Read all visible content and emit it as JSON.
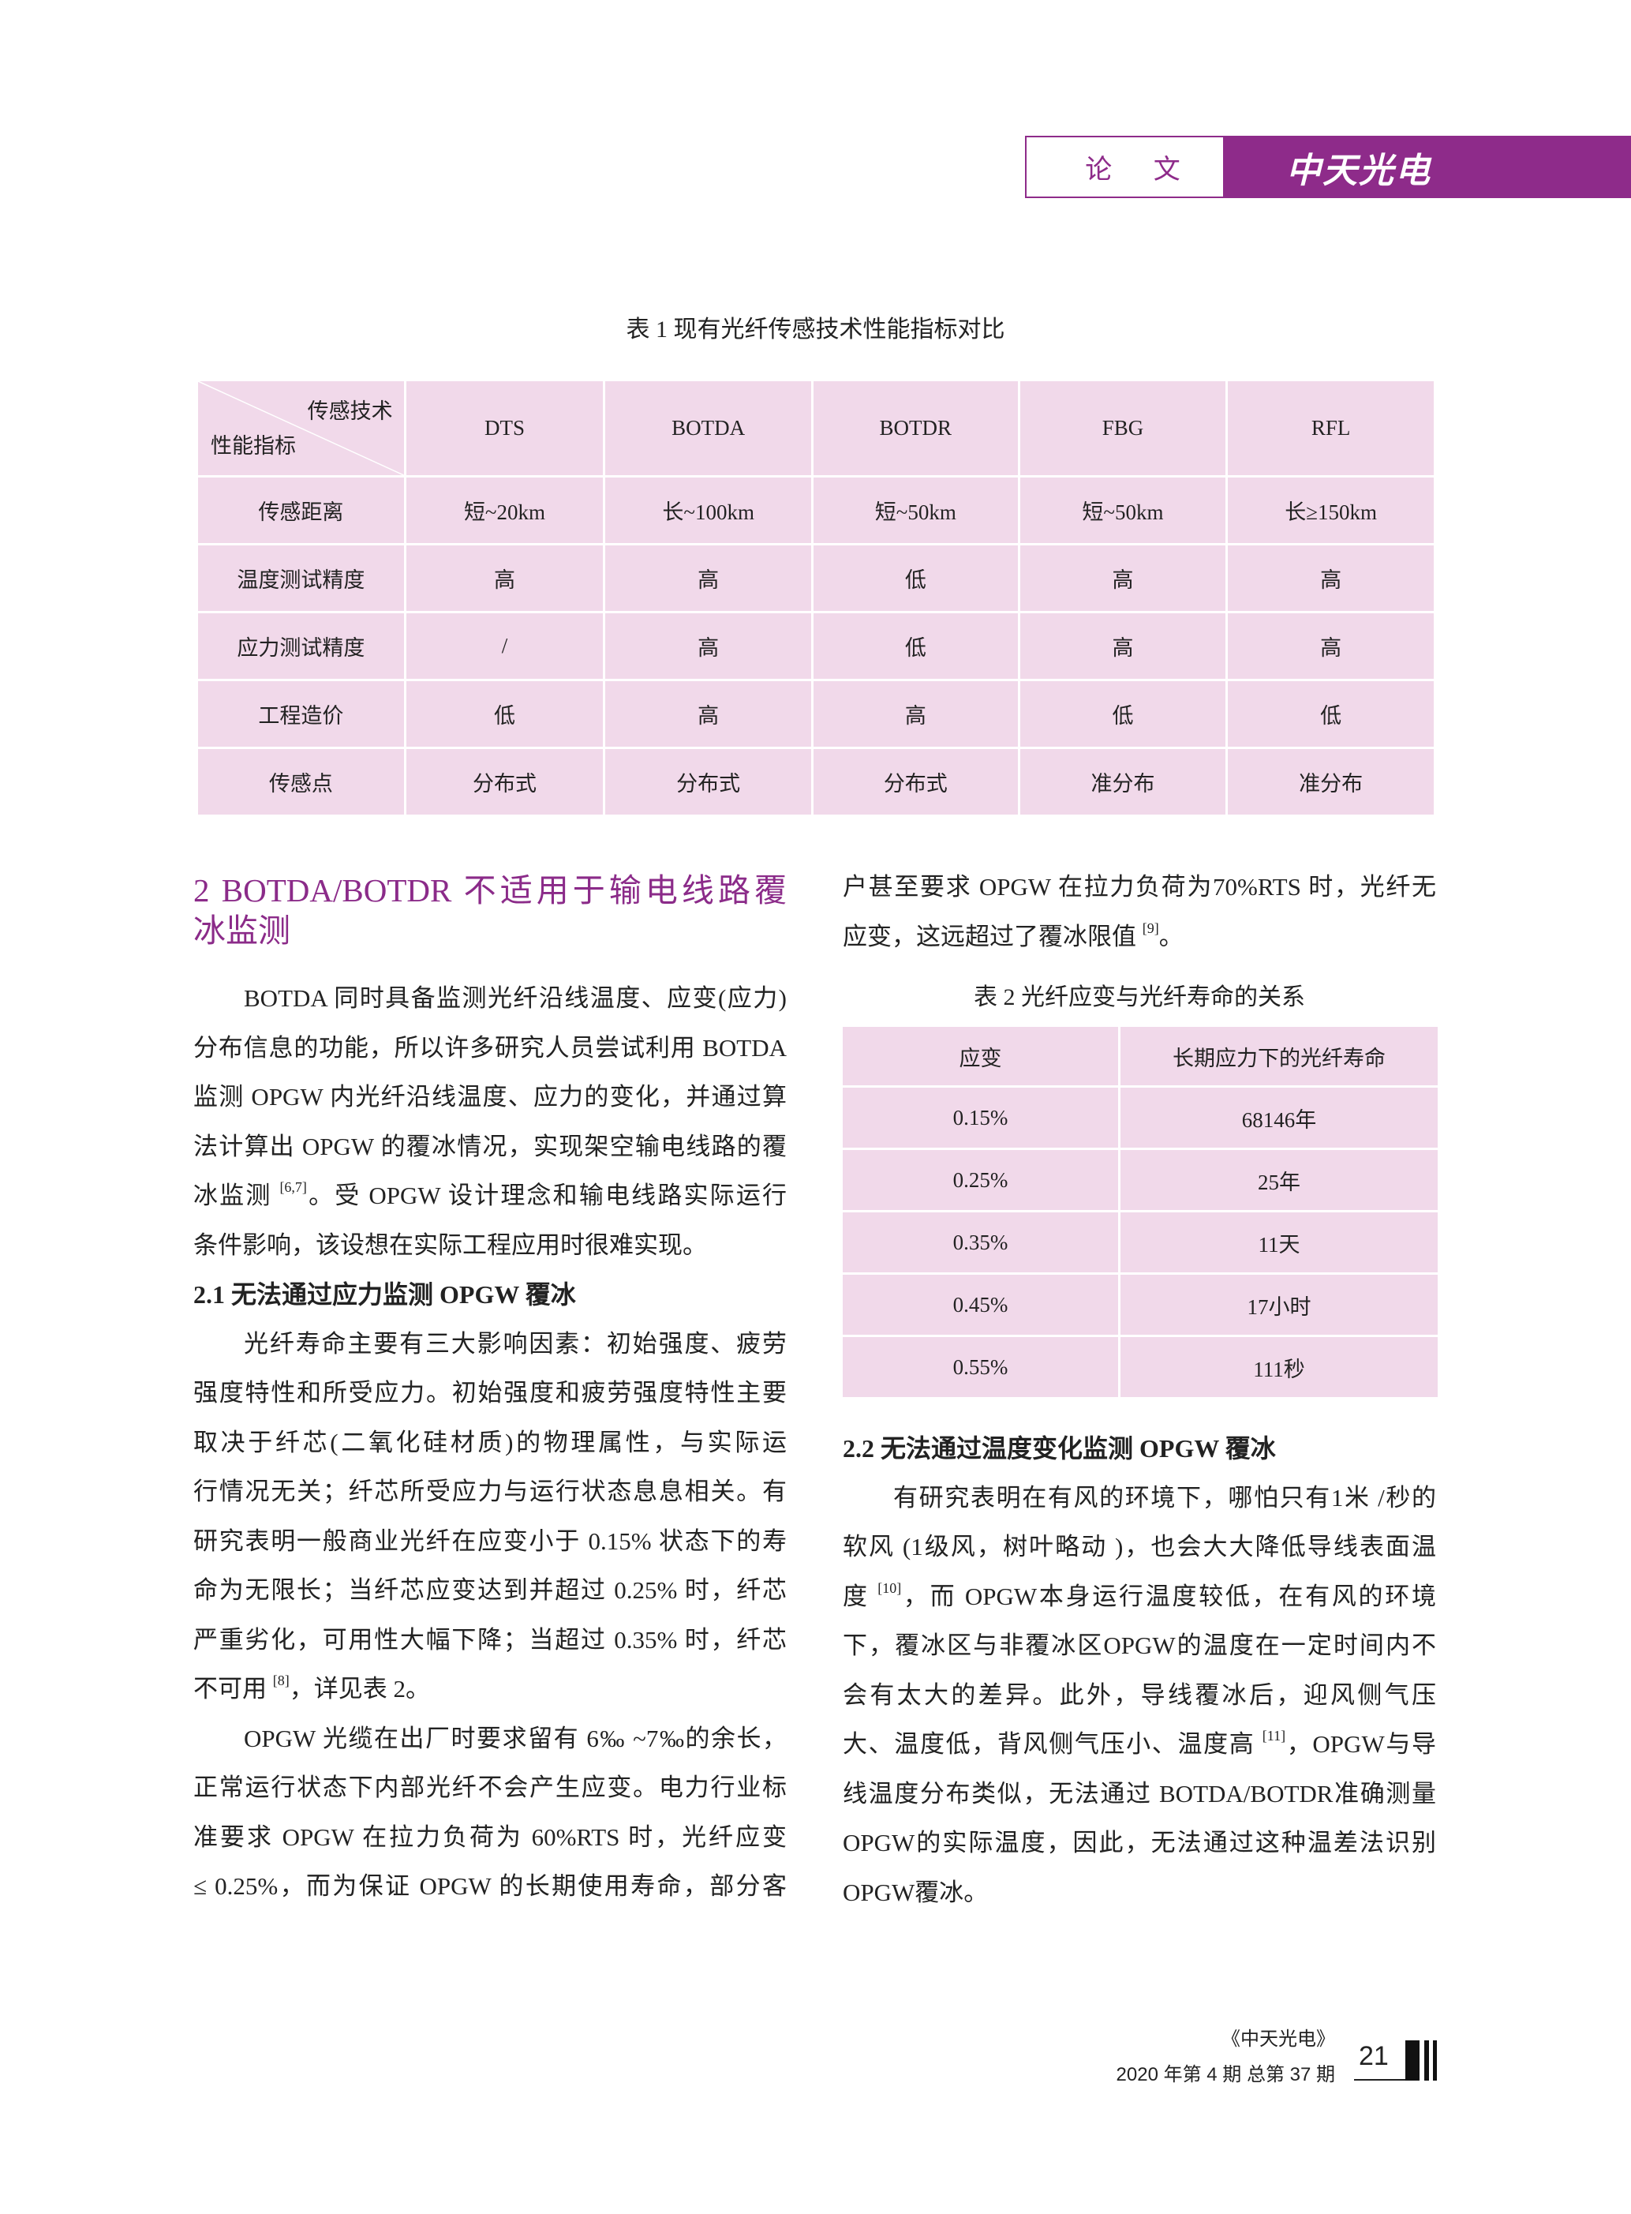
{
  "header": {
    "section_label": "论 文",
    "brand": "中天光电",
    "brand_color": "#8e2b8a"
  },
  "table1": {
    "caption": "表 1  现有光纤传感技术性能指标对比",
    "corner_top": "传感技术",
    "corner_bottom": "性能指标",
    "columns": [
      "DTS",
      "BOTDA",
      "BOTDR",
      "FBG",
      "RFL"
    ],
    "rows": [
      {
        "label": "传感距离",
        "cells": [
          "短~20km",
          "长~100km",
          "短~50km",
          "短~50km",
          "长≥150km"
        ]
      },
      {
        "label": "温度测试精度",
        "cells": [
          "高",
          "高",
          "低",
          "高",
          "高"
        ]
      },
      {
        "label": "应力测试精度",
        "cells": [
          "/",
          "高",
          "低",
          "高",
          "高"
        ]
      },
      {
        "label": "工程造价",
        "cells": [
          "低",
          "高",
          "高",
          "低",
          "低"
        ]
      },
      {
        "label": "传感点",
        "cells": [
          "分布式",
          "分布式",
          "分布式",
          "准分布",
          "准分布"
        ]
      }
    ],
    "fill_color": "#f1d9ea"
  },
  "left": {
    "heading": [
      "2 BOTDA/BOTDR 不适用于输电线路覆",
      "冰监测"
    ],
    "blocks": [
      {
        "lines": [
          [
            "BOTDA 同时具备监测光纤沿线温度、应变(应力)"
          ],
          [
            "分布信息的功能，所以许多研究人员尝试利用 BOTDA"
          ],
          [
            "监测 OPGW 内光纤沿线温度、应力的变化，并通过算"
          ],
          [
            "法计算出 OPGW 的覆冰情况，实现架空输电线路的覆"
          ],
          [
            "冰监测 ",
            {
              "sup": "[6,7]"
            },
            "。受 OPGW 设计理念和输电线路实际运行"
          ],
          [
            "条件影响，该设想在实际工程应用时很难实现。"
          ]
        ]
      },
      {
        "subhead": "2.1 无法通过应力监测 OPGW 覆冰"
      },
      {
        "lines": [
          [
            "光纤寿命主要有三大影响因素：初始强度、疲劳"
          ],
          [
            "强度特性和所受应力。初始强度和疲劳强度特性主要"
          ],
          [
            "取决于纤芯(二氧化硅材质)的物理属性，与实际运"
          ],
          [
            "行情况无关；纤芯所受应力与运行状态息息相关。有"
          ],
          [
            "研究表明一般商业光纤在应变小于 0.15% 状态下的寿"
          ],
          [
            "命为无限长；当纤芯应变达到并超过 0.25% 时，纤芯"
          ],
          [
            "严重劣化，可用性大幅下降；当超过 0.35% 时，纤芯"
          ],
          [
            "不可用 ",
            {
              "sup": "[8]"
            },
            "，详见表 2。"
          ]
        ]
      },
      {
        "lines": [
          [
            "OPGW 光缆在出厂时要求留有 6‰ ~7‰的余长，"
          ],
          [
            "正常运行状态下内部光纤不会产生应变。电力行业标"
          ],
          [
            "准要求 OPGW 在拉力负荷为 60%RTS 时，光纤应变"
          ],
          [
            "≤ 0.25%，而为保证 OPGW 的长期使用寿命，部分客"
          ]
        ],
        "continues": true
      }
    ]
  },
  "right": {
    "top_blocks": [
      {
        "lines": [
          [
            "户甚至要求 OPGW 在拉力负荷为70%RTS 时，光纤无"
          ],
          [
            "应变，这远超过了覆冰限值 ",
            {
              "sup": "[9]"
            },
            "。"
          ]
        ],
        "continued": true
      }
    ],
    "bottom_blocks": [
      {
        "subhead": "2.2 无法通过温度变化监测 OPGW 覆冰"
      },
      {
        "lines": [
          [
            "有研究表明在有风的环境下，哪怕只有1米 /秒的"
          ],
          [
            "软风 (1级风，树叶略动 )，也会大大降低导线表面温"
          ],
          [
            "度 ",
            {
              "sup": "[10]"
            },
            "，而 OPGW本身运行温度较低，在有风的环境"
          ],
          [
            "下，覆冰区与非覆冰区OPGW的温度在一定时间内不"
          ],
          [
            "会有太大的差异。此外，导线覆冰后，迎风侧气压"
          ],
          [
            "大、温度低，背风侧气压小、温度高 ",
            {
              "sup": "[11]"
            },
            "，OPGW与导"
          ],
          [
            "线温度分布类似，无法通过 BOTDA/BOTDR准确测量"
          ],
          [
            "OPGW的实际温度，因此，无法通过这种温差法识别"
          ],
          [
            "OPGW覆冰。"
          ]
        ]
      }
    ]
  },
  "table2": {
    "caption": "表 2 光纤应变与光纤寿命的关系",
    "columns": [
      "应变",
      "长期应力下的光纤寿命"
    ],
    "rows": [
      [
        "0.15%",
        "68146年"
      ],
      [
        "0.25%",
        "25年"
      ],
      [
        "0.35%",
        "11天"
      ],
      [
        "0.45%",
        "17小时"
      ],
      [
        "0.55%",
        "111秒"
      ]
    ]
  },
  "footer": {
    "journal": "《中天光电》",
    "issue": "2020 年第 4 期 总第 37 期",
    "page_number": "21"
  }
}
